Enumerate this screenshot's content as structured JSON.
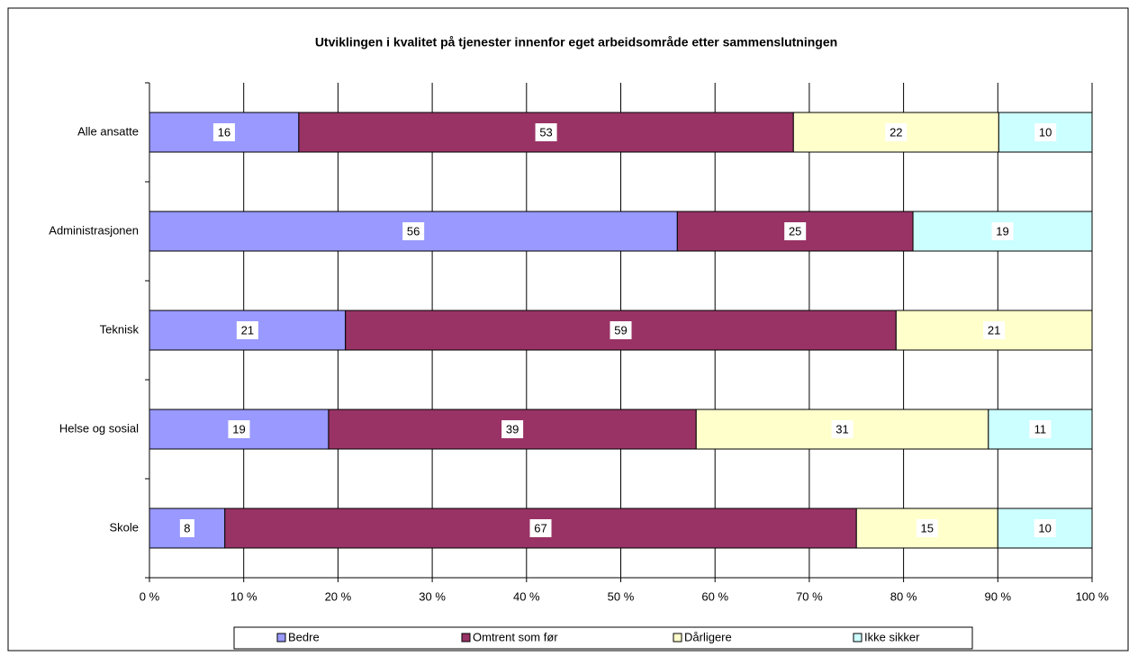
{
  "chart_data": {
    "type": "bar",
    "orientation": "horizontal",
    "stacking": "percent",
    "title": "Utviklingen i kvalitet på tjenester innenfor eget arbeidsområde etter sammenslutningen",
    "categories": [
      "Alle ansatte",
      "Administrasjonen",
      "Teknisk",
      "Helse og sosial",
      "Skole"
    ],
    "series": [
      {
        "name": "Bedre",
        "color": "#9999ff",
        "values": [
          16,
          56,
          21,
          19,
          8
        ]
      },
      {
        "name": "Omtrent som før",
        "color": "#993366",
        "values": [
          53,
          25,
          59,
          39,
          67
        ]
      },
      {
        "name": "Dårligere",
        "color": "#ffffcc",
        "values": [
          22,
          null,
          21,
          31,
          15
        ]
      },
      {
        "name": "Ikke sikker",
        "color": "#ccffff",
        "values": [
          10,
          19,
          null,
          11,
          10
        ]
      }
    ],
    "xlim": [
      0,
      100
    ],
    "xticks": [
      {
        "value": 0,
        "label": "0 %"
      },
      {
        "value": 10,
        "label": "10 %"
      },
      {
        "value": 20,
        "label": "20 %"
      },
      {
        "value": 30,
        "label": "30 %"
      },
      {
        "value": 40,
        "label": "40 %"
      },
      {
        "value": 50,
        "label": "50 %"
      },
      {
        "value": 60,
        "label": "60 %"
      },
      {
        "value": 70,
        "label": "70 %"
      },
      {
        "value": 80,
        "label": "80 %"
      },
      {
        "value": 90,
        "label": "90 %"
      },
      {
        "value": 100,
        "label": "100 %"
      }
    ],
    "grid": true,
    "legend": "bottom"
  }
}
